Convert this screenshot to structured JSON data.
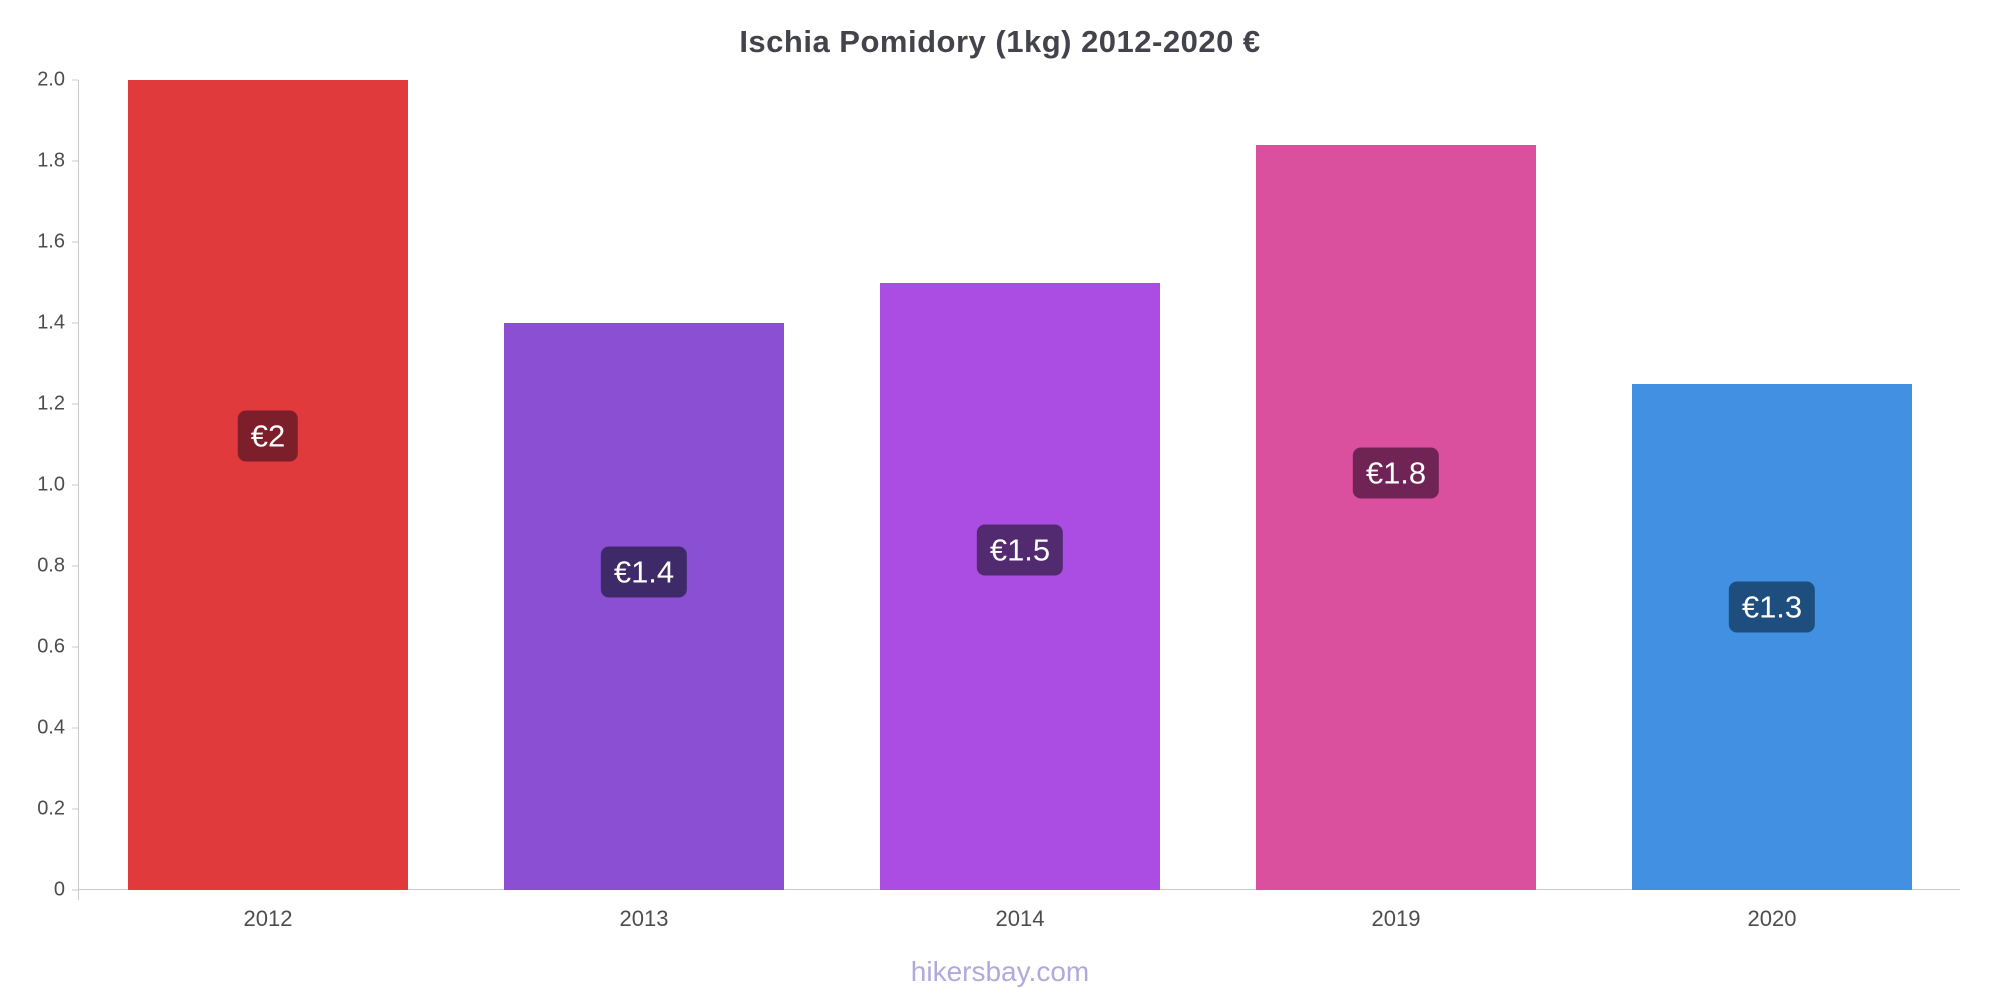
{
  "title": "Ischia Pomidory (1kg) 2012-2020 €",
  "footer": {
    "text": "hikersbay.com"
  },
  "chart_data": {
    "type": "bar",
    "title": "Ischia Pomidory (1kg) 2012-2020 €",
    "categories": [
      "2012",
      "2013",
      "2014",
      "2019",
      "2020"
    ],
    "values": [
      2,
      1.4,
      1.5,
      1.84,
      1.25
    ],
    "bar_labels": [
      "€2",
      "€1.4",
      "€1.5",
      "€1.8",
      "€1.3"
    ],
    "bar_colors": [
      "#e13a3c",
      "#8b4fd4",
      "#ab4ce2",
      "#da4f9e",
      "#4190e2"
    ],
    "label_bg_colors": [
      "#7c1f2b",
      "#3e2a69",
      "#512a70",
      "#702355",
      "#1e4e7e"
    ],
    "xlabel": "",
    "ylabel": "",
    "ylim": [
      0,
      2
    ],
    "y_ticks": [
      "2.0",
      "1.8",
      "1.6",
      "1.4",
      "1.2",
      "1.0",
      "0.8",
      "0.6",
      "0.4",
      "0.2",
      "0"
    ],
    "y_tick_values": [
      2,
      1.8,
      1.6,
      1.4,
      1.2,
      1.0,
      0.8,
      0.6,
      0.4,
      0.2,
      0
    ],
    "grid": false,
    "legend": false
  }
}
